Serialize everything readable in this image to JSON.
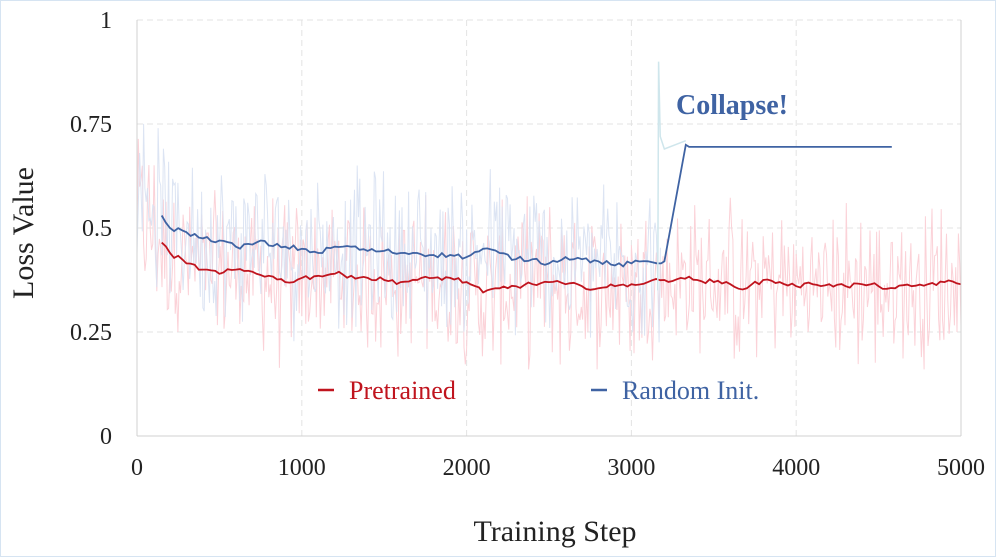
{
  "chart_data": {
    "type": "line",
    "title": "",
    "xlabel": "Training Step",
    "ylabel": "Loss Value",
    "xlim": [
      0,
      5000
    ],
    "ylim": [
      0,
      1
    ],
    "xticks": [
      0,
      1000,
      2000,
      3000,
      4000,
      5000
    ],
    "xtick_labels": [
      "0",
      "1000",
      "2000",
      "3000",
      "4000",
      "5000"
    ],
    "yticks": [
      0,
      0.25,
      0.5,
      0.75,
      1
    ],
    "ytick_labels": [
      "0",
      "0.25",
      "0.5",
      "0.75",
      "1"
    ],
    "grid": true,
    "legend_position": "bottom-center",
    "series": [
      {
        "name": "Pretrained",
        "color": "#c0141e",
        "raw_color": "#fbd0d6",
        "raw_range": [
          0,
          5000
        ],
        "smoothed": {
          "x": [
            150,
            200,
            300,
            400,
            500,
            600,
            700,
            800,
            900,
            1000,
            1100,
            1200,
            1300,
            1400,
            1500,
            1600,
            1700,
            1800,
            1900,
            2000,
            2100,
            2200,
            2300,
            2400,
            2500,
            2600,
            2700,
            2800,
            2900,
            3000,
            3100,
            3200,
            3300,
            3400,
            3500,
            3600,
            3700,
            3800,
            3900,
            4000,
            4100,
            4200,
            4300,
            4400,
            4500,
            4600,
            4700,
            4800,
            4900,
            5000
          ],
          "y": [
            0.465,
            0.44,
            0.415,
            0.4,
            0.39,
            0.4,
            0.395,
            0.385,
            0.37,
            0.38,
            0.385,
            0.39,
            0.385,
            0.38,
            0.375,
            0.37,
            0.375,
            0.38,
            0.38,
            0.37,
            0.345,
            0.355,
            0.36,
            0.365,
            0.37,
            0.365,
            0.36,
            0.355,
            0.36,
            0.365,
            0.37,
            0.375,
            0.38,
            0.375,
            0.37,
            0.365,
            0.355,
            0.375,
            0.37,
            0.36,
            0.365,
            0.365,
            0.36,
            0.365,
            0.36,
            0.355,
            0.36,
            0.365,
            0.37,
            0.365
          ]
        },
        "legend_label": "Pretrained"
      },
      {
        "name": "Random Init.",
        "color": "#3f63a3",
        "raw_color": "#d8e1f2",
        "raw_range": [
          0,
          3200
        ],
        "smoothed": {
          "x": [
            150,
            200,
            300,
            400,
            500,
            600,
            700,
            750,
            800,
            900,
            1000,
            1100,
            1200,
            1300,
            1400,
            1500,
            1600,
            1700,
            1800,
            1900,
            2000,
            2100,
            2200,
            2300,
            2400,
            2500,
            2600,
            2700,
            2800,
            2900,
            3000,
            3100,
            3180,
            3200,
            3330,
            3350,
            4000,
            4580
          ],
          "y": [
            0.53,
            0.5,
            0.49,
            0.475,
            0.47,
            0.455,
            0.46,
            0.47,
            0.458,
            0.455,
            0.45,
            0.44,
            0.455,
            0.455,
            0.445,
            0.445,
            0.44,
            0.44,
            0.435,
            0.435,
            0.43,
            0.45,
            0.44,
            0.425,
            0.425,
            0.415,
            0.43,
            0.425,
            0.42,
            0.41,
            0.415,
            0.42,
            0.415,
            0.42,
            0.7,
            0.695,
            0.695,
            0.695
          ]
        },
        "legend_label": "Random Init."
      }
    ],
    "annotations": [
      {
        "text": "Collapse!",
        "x": 3300,
        "y": 0.85,
        "color": "#3f63a3"
      }
    ]
  }
}
